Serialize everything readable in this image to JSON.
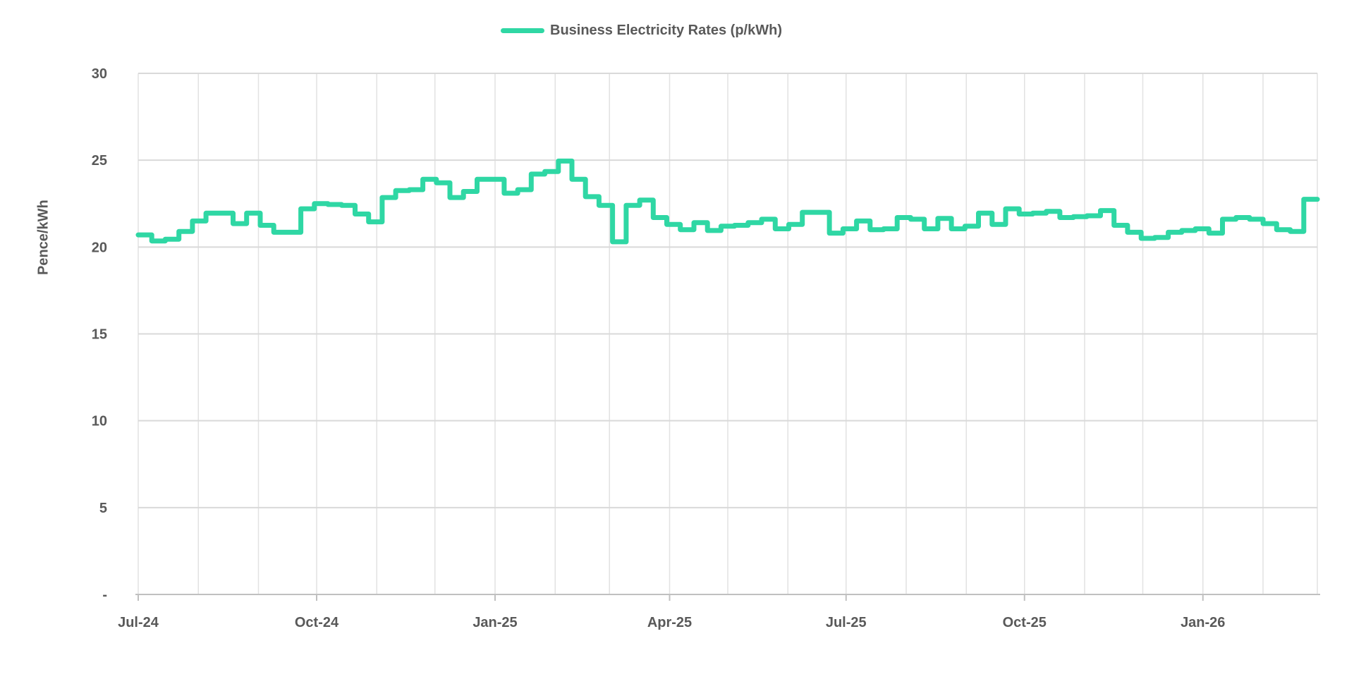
{
  "chart_data": {
    "type": "line",
    "line_style": "step",
    "frequency": "weekly",
    "title": "Business Electricity Rates (p/kWh)",
    "legend": {
      "label": "Business Electricity Rates (p/kWh)",
      "position": "top-center"
    },
    "ylabel": "Pence/kWh",
    "xlabel": "",
    "ylim": [
      0,
      30
    ],
    "y_tick_values": [
      0,
      5,
      10,
      15,
      20,
      25,
      30
    ],
    "y_tick_labels": [
      "-",
      "5",
      "10",
      "15",
      "20",
      "25",
      "30"
    ],
    "x_tick_labels": [
      "Jul-24",
      "Oct-24",
      "Jan-25",
      "Apr-25",
      "Jul-25",
      "Oct-25",
      "Jan-26"
    ],
    "x_range": "Jul-2024 to Feb-2026",
    "gridlines": {
      "horizontal": true,
      "vertical": "monthly"
    },
    "colors": {
      "line": "#2fd7a4",
      "text": "#595959",
      "gridline_h": "#d9d9d9",
      "gridline_v": "#e2e2e2",
      "axis": "#c0c0c0"
    },
    "series": [
      {
        "name": "Business Electricity Rates (p/kWh)",
        "values": [
          20.7,
          20.35,
          20.45,
          20.9,
          21.5,
          21.95,
          21.95,
          21.35,
          21.95,
          21.25,
          20.85,
          20.85,
          22.2,
          22.5,
          22.45,
          22.4,
          21.9,
          21.45,
          22.85,
          23.25,
          23.3,
          23.9,
          23.7,
          22.85,
          23.2,
          23.9,
          23.9,
          23.1,
          23.3,
          24.2,
          24.35,
          24.95,
          23.9,
          22.9,
          22.4,
          20.3,
          22.4,
          22.7,
          21.7,
          21.3,
          21.0,
          21.4,
          20.95,
          21.2,
          21.25,
          21.4,
          21.6,
          21.05,
          21.3,
          22.0,
          22.0,
          20.8,
          21.05,
          21.5,
          21.0,
          21.05,
          21.7,
          21.6,
          21.05,
          21.65,
          21.05,
          21.2,
          21.95,
          21.3,
          22.2,
          21.9,
          21.95,
          22.05,
          21.7,
          21.75,
          21.8,
          22.1,
          21.25,
          20.85,
          20.5,
          20.55,
          20.85,
          20.95,
          21.05,
          20.8,
          21.6,
          21.7,
          21.6,
          21.35,
          21.0,
          20.9,
          22.75
        ]
      }
    ]
  }
}
